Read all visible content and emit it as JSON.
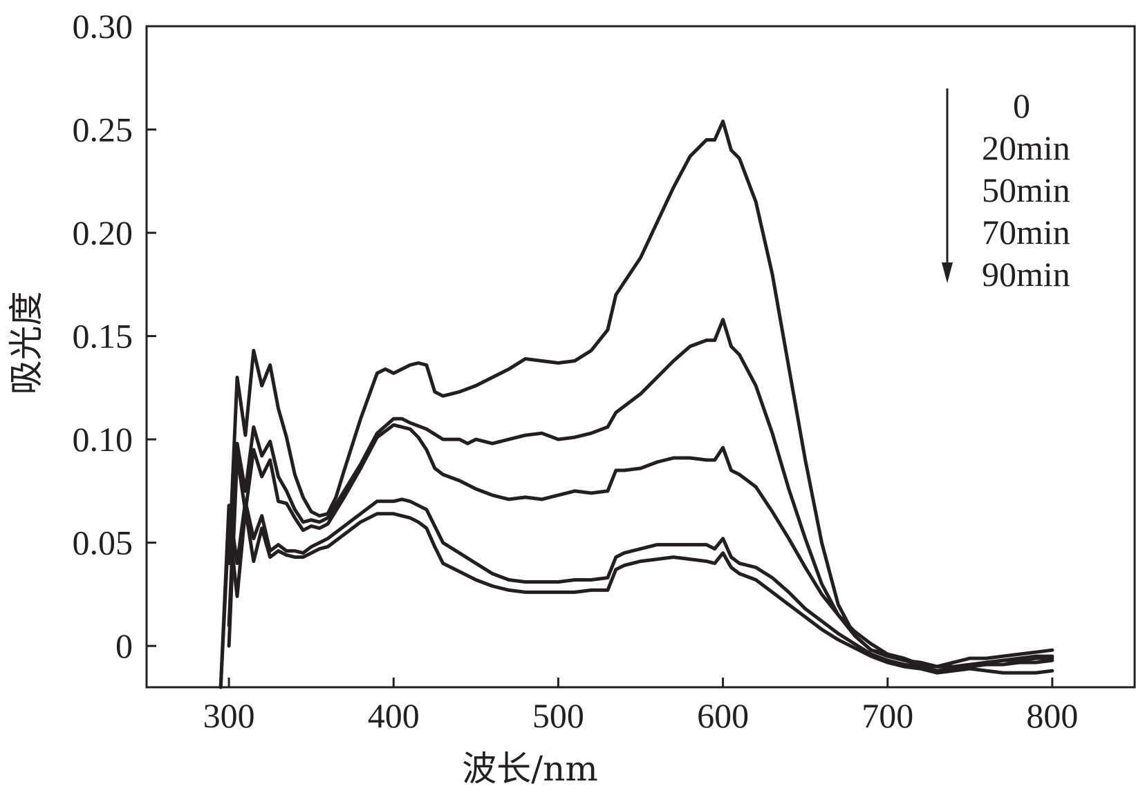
{
  "chart_data": {
    "type": "line",
    "title": "",
    "xlabel": "波长/nm",
    "ylabel": "吸光度",
    "xlim": [
      250,
      850
    ],
    "ylim": [
      -0.02,
      0.3
    ],
    "xticks": [
      300,
      400,
      500,
      600,
      700,
      800
    ],
    "yticks": [
      0,
      0.05,
      0.1,
      0.15,
      0.2,
      0.25,
      0.3
    ],
    "xtick_labels": [
      "300",
      "400",
      "500",
      "600",
      "700",
      "800"
    ],
    "ytick_labels": [
      "0",
      "0.05",
      "0.10",
      "0.15",
      "0.20",
      "0.25",
      "0.30"
    ],
    "grid": false,
    "legend_position": "top-right",
    "legend_arrow": "down",
    "series": [
      {
        "name": "0",
        "x": [
          300,
          305,
          310,
          315,
          320,
          325,
          330,
          335,
          340,
          345,
          350,
          355,
          360,
          365,
          370,
          380,
          390,
          395,
          400,
          410,
          415,
          420,
          425,
          430,
          440,
          450,
          460,
          470,
          480,
          490,
          500,
          510,
          520,
          530,
          535,
          540,
          550,
          560,
          570,
          580,
          590,
          595,
          600,
          605,
          610,
          620,
          630,
          640,
          650,
          660,
          670,
          680,
          690,
          700,
          710,
          720,
          730,
          740,
          750,
          760,
          770,
          780,
          790,
          800
        ],
        "y": [
          0.04,
          0.13,
          0.102,
          0.143,
          0.126,
          0.136,
          0.115,
          0.101,
          0.083,
          0.072,
          0.065,
          0.063,
          0.064,
          0.072,
          0.085,
          0.11,
          0.132,
          0.134,
          0.132,
          0.136,
          0.137,
          0.136,
          0.123,
          0.121,
          0.123,
          0.126,
          0.13,
          0.134,
          0.139,
          0.138,
          0.137,
          0.138,
          0.143,
          0.153,
          0.17,
          0.176,
          0.188,
          0.205,
          0.222,
          0.237,
          0.245,
          0.245,
          0.254,
          0.24,
          0.236,
          0.215,
          0.18,
          0.135,
          0.09,
          0.05,
          0.02,
          0.005,
          -0.002,
          -0.005,
          -0.007,
          -0.008,
          -0.01,
          -0.008,
          -0.006,
          -0.006,
          -0.005,
          -0.004,
          -0.003,
          -0.002
        ]
      },
      {
        "name": "20min",
        "x": [
          300,
          305,
          310,
          315,
          320,
          325,
          330,
          335,
          340,
          345,
          350,
          355,
          360,
          370,
          380,
          390,
          400,
          405,
          410,
          420,
          430,
          440,
          445,
          450,
          460,
          470,
          480,
          490,
          500,
          510,
          520,
          530,
          535,
          540,
          550,
          560,
          570,
          580,
          590,
          595,
          600,
          605,
          610,
          620,
          630,
          640,
          650,
          660,
          670,
          680,
          690,
          700,
          710,
          720,
          730,
          740,
          750,
          760,
          770,
          780,
          790,
          800
        ],
        "y": [
          0.01,
          0.098,
          0.075,
          0.106,
          0.092,
          0.099,
          0.082,
          0.075,
          0.066,
          0.06,
          0.061,
          0.06,
          0.062,
          0.075,
          0.088,
          0.103,
          0.11,
          0.11,
          0.108,
          0.105,
          0.1,
          0.1,
          0.098,
          0.1,
          0.098,
          0.1,
          0.102,
          0.103,
          0.1,
          0.101,
          0.103,
          0.106,
          0.113,
          0.116,
          0.122,
          0.13,
          0.138,
          0.145,
          0.148,
          0.148,
          0.158,
          0.145,
          0.141,
          0.126,
          0.103,
          0.076,
          0.052,
          0.03,
          0.015,
          0.005,
          -0.002,
          -0.004,
          -0.007,
          -0.009,
          -0.01,
          -0.01,
          -0.009,
          -0.008,
          -0.007,
          -0.007,
          -0.006,
          -0.006
        ]
      },
      {
        "name": "50min",
        "x": [
          300,
          305,
          310,
          315,
          320,
          325,
          330,
          335,
          340,
          345,
          350,
          355,
          360,
          370,
          380,
          390,
          400,
          410,
          415,
          420,
          425,
          430,
          440,
          450,
          460,
          470,
          480,
          490,
          500,
          510,
          520,
          530,
          535,
          540,
          550,
          560,
          570,
          580,
          590,
          595,
          600,
          605,
          610,
          620,
          630,
          640,
          650,
          660,
          670,
          680,
          690,
          700,
          710,
          720,
          730,
          740,
          750,
          760,
          770,
          780,
          790,
          800
        ],
        "y": [
          0.0,
          0.092,
          0.065,
          0.095,
          0.082,
          0.09,
          0.07,
          0.069,
          0.062,
          0.056,
          0.058,
          0.057,
          0.059,
          0.072,
          0.086,
          0.101,
          0.107,
          0.105,
          0.101,
          0.095,
          0.086,
          0.083,
          0.08,
          0.076,
          0.073,
          0.071,
          0.072,
          0.071,
          0.073,
          0.075,
          0.074,
          0.075,
          0.085,
          0.085,
          0.086,
          0.089,
          0.091,
          0.091,
          0.09,
          0.09,
          0.096,
          0.085,
          0.083,
          0.077,
          0.065,
          0.052,
          0.038,
          0.025,
          0.015,
          0.007,
          0.001,
          -0.004,
          -0.006,
          -0.009,
          -0.01,
          -0.01,
          -0.01,
          -0.009,
          -0.009,
          -0.008,
          -0.008,
          -0.007
        ]
      },
      {
        "name": "70min",
        "x": [
          295,
          300,
          305,
          310,
          315,
          320,
          325,
          330,
          335,
          340,
          345,
          350,
          355,
          360,
          370,
          380,
          390,
          395,
          400,
          405,
          410,
          415,
          420,
          425,
          430,
          440,
          450,
          460,
          470,
          480,
          490,
          500,
          510,
          520,
          530,
          535,
          540,
          550,
          560,
          570,
          580,
          590,
          595,
          600,
          605,
          610,
          620,
          630,
          640,
          650,
          660,
          670,
          680,
          690,
          700,
          710,
          720,
          730,
          740,
          750,
          760,
          770,
          780,
          790,
          800
        ],
        "y": [
          -0.02,
          0.068,
          0.04,
          0.07,
          0.052,
          0.063,
          0.046,
          0.049,
          0.046,
          0.046,
          0.045,
          0.048,
          0.05,
          0.052,
          0.058,
          0.064,
          0.07,
          0.07,
          0.07,
          0.071,
          0.07,
          0.068,
          0.066,
          0.058,
          0.05,
          0.045,
          0.04,
          0.035,
          0.032,
          0.031,
          0.031,
          0.031,
          0.032,
          0.032,
          0.033,
          0.043,
          0.045,
          0.047,
          0.049,
          0.049,
          0.049,
          0.049,
          0.047,
          0.052,
          0.043,
          0.04,
          0.038,
          0.033,
          0.026,
          0.018,
          0.012,
          0.006,
          0.001,
          -0.004,
          -0.007,
          -0.009,
          -0.01,
          -0.012,
          -0.011,
          -0.01,
          -0.008,
          -0.007,
          -0.006,
          -0.005,
          -0.005
        ]
      },
      {
        "name": "90min",
        "x": [
          295,
          300,
          305,
          310,
          315,
          320,
          325,
          330,
          335,
          340,
          345,
          350,
          355,
          360,
          370,
          380,
          390,
          395,
          400,
          405,
          410,
          415,
          420,
          425,
          430,
          440,
          450,
          460,
          470,
          480,
          490,
          500,
          510,
          520,
          530,
          535,
          540,
          550,
          560,
          570,
          580,
          590,
          595,
          600,
          605,
          610,
          620,
          630,
          640,
          650,
          660,
          670,
          680,
          690,
          700,
          710,
          720,
          730,
          740,
          750,
          760,
          770,
          780,
          790,
          800
        ],
        "y": [
          -0.02,
          0.06,
          0.024,
          0.066,
          0.041,
          0.057,
          0.043,
          0.046,
          0.044,
          0.043,
          0.043,
          0.045,
          0.047,
          0.048,
          0.054,
          0.06,
          0.064,
          0.064,
          0.064,
          0.063,
          0.062,
          0.06,
          0.057,
          0.048,
          0.04,
          0.036,
          0.032,
          0.029,
          0.027,
          0.026,
          0.026,
          0.026,
          0.026,
          0.027,
          0.027,
          0.037,
          0.039,
          0.041,
          0.042,
          0.043,
          0.042,
          0.041,
          0.04,
          0.045,
          0.038,
          0.035,
          0.032,
          0.026,
          0.02,
          0.014,
          0.008,
          0.003,
          -0.001,
          -0.005,
          -0.008,
          -0.01,
          -0.011,
          -0.013,
          -0.012,
          -0.011,
          -0.012,
          -0.013,
          -0.013,
          -0.013,
          -0.012
        ]
      }
    ]
  }
}
